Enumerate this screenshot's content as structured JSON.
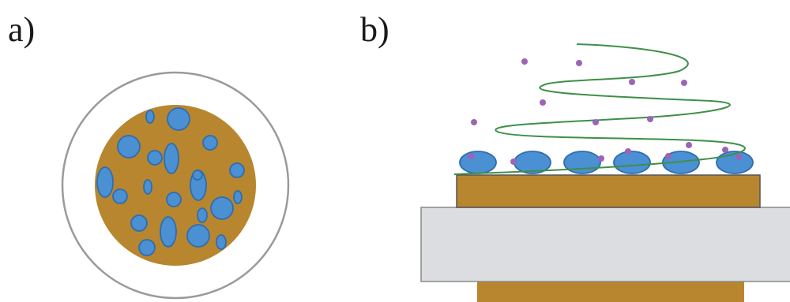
{
  "panels": {
    "a": {
      "label": "a)"
    },
    "b": {
      "label": "b)"
    }
  },
  "colors": {
    "substrate_gold": "#B8862F",
    "droplet_blue": "#4A90D2",
    "droplet_edge": "#2E6DAE",
    "ring_gray": "#9A9A9A",
    "slab_gray": "#DCDDE0",
    "slab_edge": "#8A8A8A",
    "edge_dark": "#555555",
    "helix_green": "#3E8F48",
    "particle_purple": "#9B64B6"
  },
  "panel_a": {
    "description_shapes": [
      "outer-ring",
      "gold-disc",
      "blue-droplets"
    ],
    "droplet_count": 24
  },
  "panel_b": {
    "droplet_count": 6,
    "particle_count": 16,
    "helix_turns": 3
  }
}
